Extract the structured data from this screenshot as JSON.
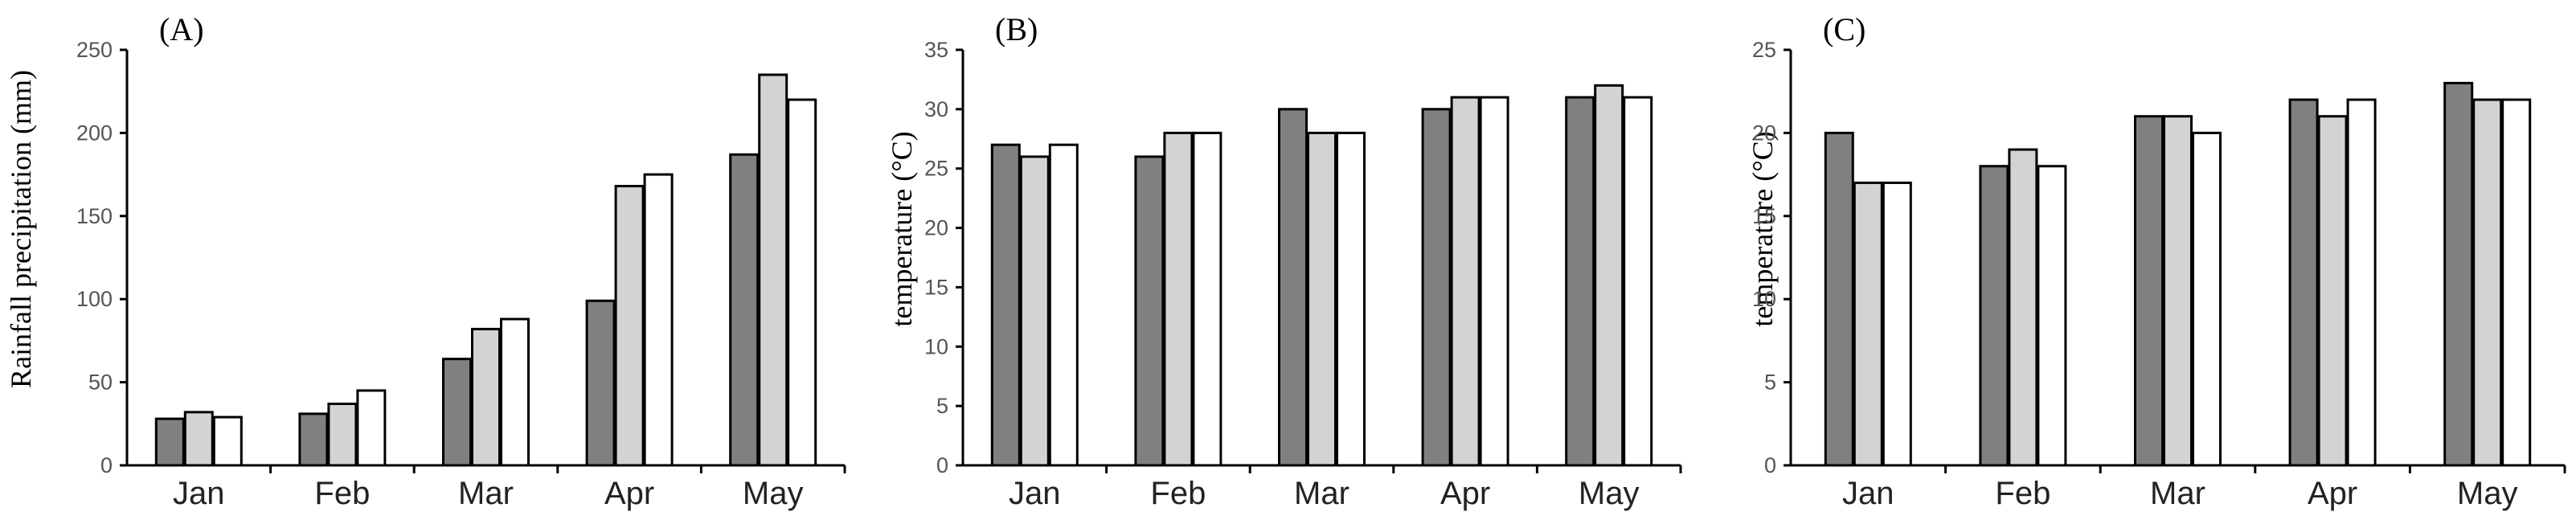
{
  "chart_data": [
    {
      "type": "bar",
      "panel_label": "(A)",
      "ylabel": "Rainfall precipitation (mm)",
      "categories": [
        "Jan",
        "Feb",
        "Mar",
        "Apr",
        "May"
      ],
      "ylim": [
        0,
        250
      ],
      "yticks": [
        0,
        50,
        100,
        150,
        200,
        250
      ],
      "series": [
        {
          "values": [
            28,
            31,
            64,
            99,
            187
          ],
          "color": "#808080"
        },
        {
          "values": [
            32,
            37,
            82,
            168,
            235
          ],
          "color": "#d3d3d3"
        },
        {
          "values": [
            29,
            45,
            88,
            175,
            220
          ],
          "color": "#ffffff"
        }
      ]
    },
    {
      "type": "bar",
      "panel_label": "(B)",
      "ylabel": "temperature (°C)",
      "categories": [
        "Jan",
        "Feb",
        "Mar",
        "Apr",
        "May"
      ],
      "ylim": [
        0,
        35
      ],
      "yticks": [
        0,
        5,
        10,
        15,
        20,
        25,
        30,
        35
      ],
      "series": [
        {
          "values": [
            27,
            26,
            30,
            30,
            31
          ],
          "color": "#808080"
        },
        {
          "values": [
            26,
            28,
            28,
            31,
            32
          ],
          "color": "#d3d3d3"
        },
        {
          "values": [
            27,
            28,
            28,
            31,
            31
          ],
          "color": "#ffffff"
        }
      ]
    },
    {
      "type": "bar",
      "panel_label": "(C)",
      "ylabel": "temperature (°C)",
      "categories": [
        "Jan",
        "Feb",
        "Mar",
        "Apr",
        "May"
      ],
      "ylim": [
        0,
        25
      ],
      "yticks": [
        0,
        5,
        10,
        15,
        20,
        25
      ],
      "series": [
        {
          "values": [
            20,
            18,
            21,
            22,
            23
          ],
          "color": "#808080"
        },
        {
          "values": [
            17,
            19,
            21,
            21,
            22
          ],
          "color": "#d3d3d3"
        },
        {
          "values": [
            17,
            18,
            20,
            22,
            22
          ],
          "color": "#ffffff"
        }
      ]
    }
  ]
}
